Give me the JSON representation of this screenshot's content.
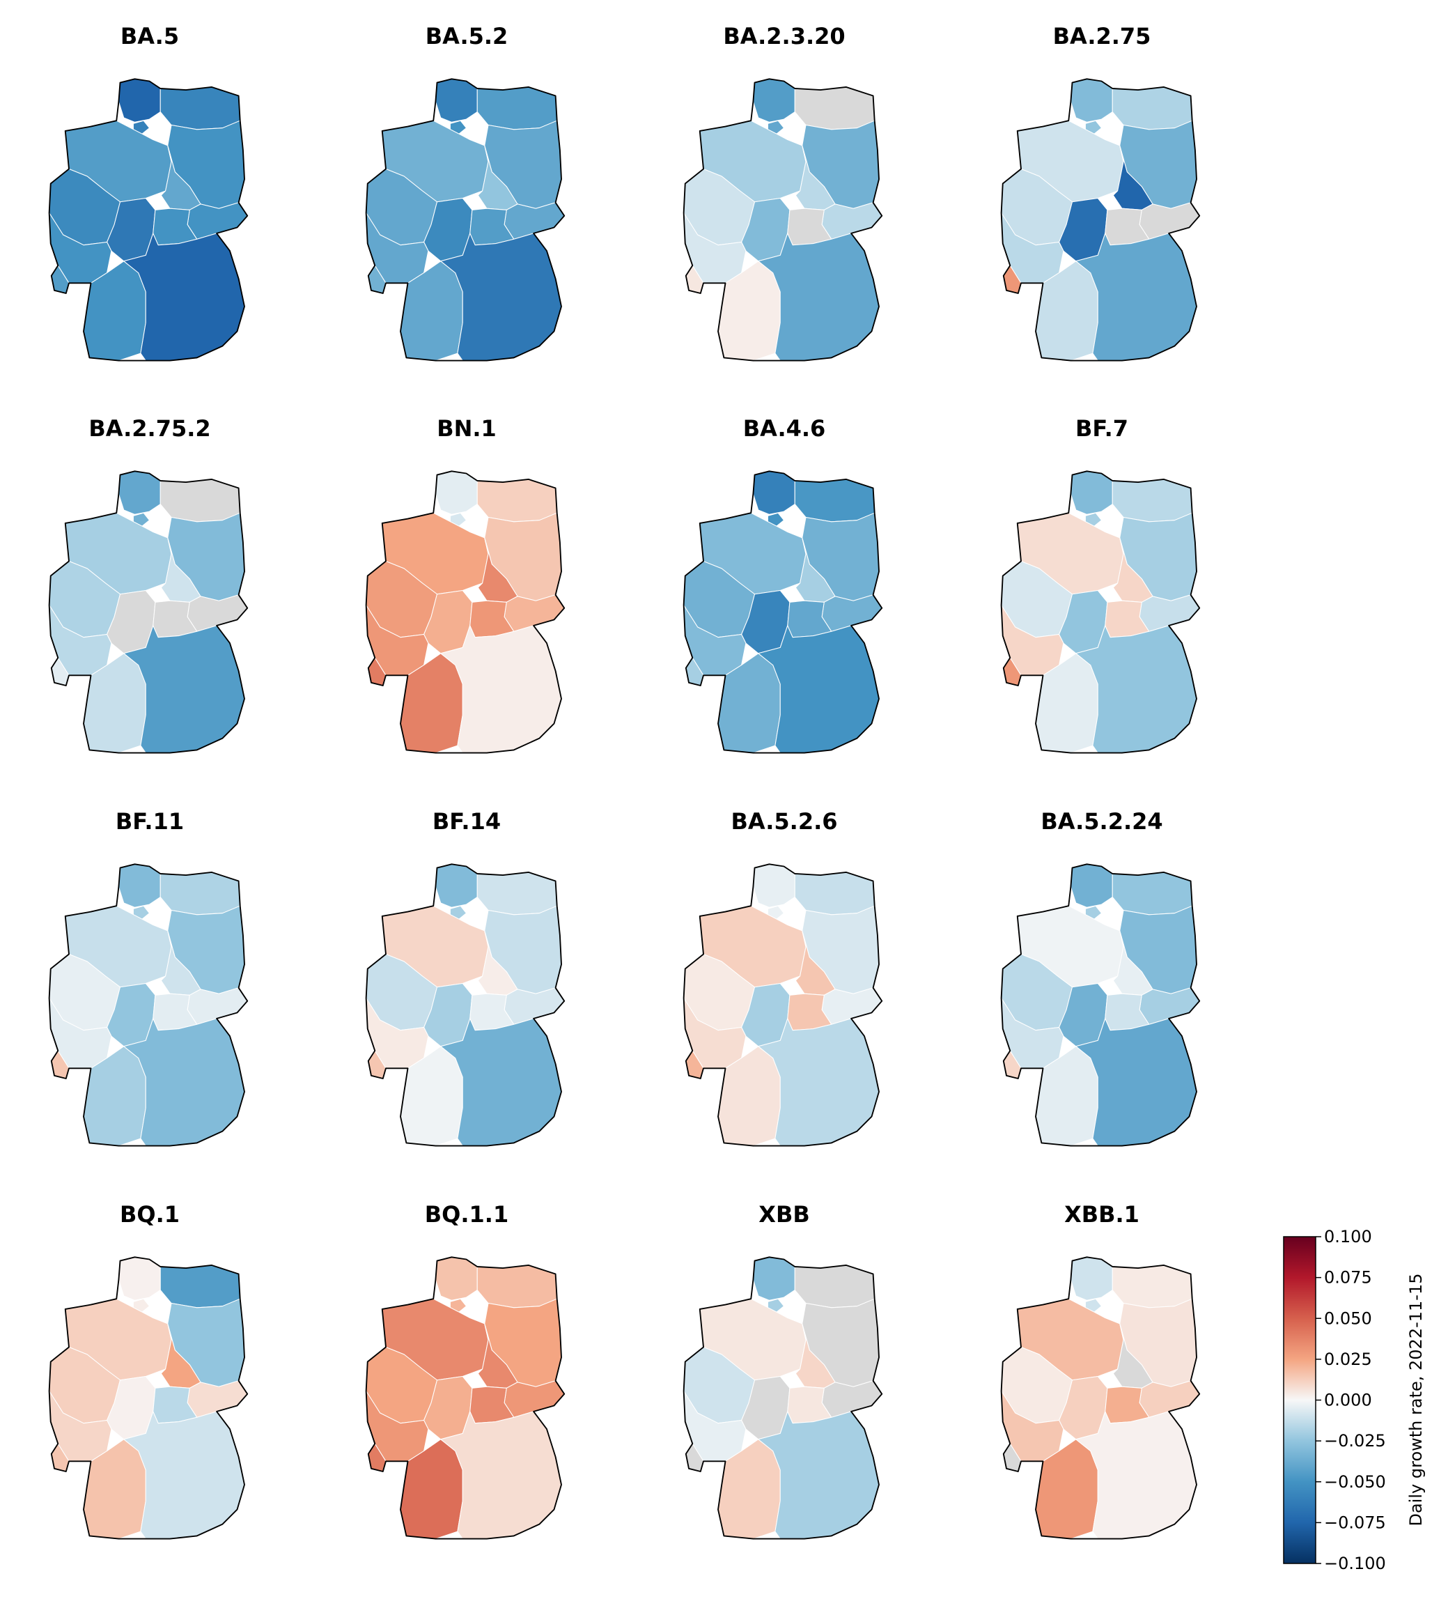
{
  "chart_data": {
    "type": "choropleth",
    "regions": [
      "SH",
      "HH",
      "MV",
      "HB",
      "NI",
      "BE",
      "BB",
      "ST",
      "NW",
      "SN",
      "HE",
      "TH",
      "RP",
      "SL",
      "BW",
      "BY"
    ],
    "missing_color": "#d9d9d9",
    "panels": [
      {
        "title": "BA.5",
        "values": {
          "SH": -0.075,
          "HH": -0.06,
          "MV": -0.058,
          "HB": -0.05,
          "NI": -0.045,
          "BE": -0.07,
          "BB": -0.05,
          "ST": -0.04,
          "NW": -0.055,
          "SN": -0.05,
          "HE": -0.065,
          "TH": -0.05,
          "RP": -0.05,
          "SL": -0.045,
          "BW": -0.05,
          "BY": -0.075
        }
      },
      {
        "title": "BA.5.2",
        "values": {
          "SH": -0.06,
          "HH": -0.05,
          "MV": -0.045,
          "HB": -0.045,
          "NI": -0.035,
          "BE": -0.065,
          "BB": -0.04,
          "ST": -0.025,
          "NW": -0.04,
          "SN": -0.04,
          "HE": -0.055,
          "TH": -0.045,
          "RP": -0.04,
          "SL": -0.035,
          "BW": -0.04,
          "BY": -0.065
        }
      },
      {
        "title": "BA.2.3.20",
        "values": {
          "SH": -0.045,
          "HH": -0.04,
          "MV": null,
          "HB": -0.03,
          "NI": -0.02,
          "BE": -0.05,
          "BB": -0.035,
          "ST": -0.015,
          "NW": -0.01,
          "SN": -0.015,
          "HE": -0.03,
          "TH": null,
          "RP": -0.008,
          "SL": 0.005,
          "BW": 0.003,
          "BY": -0.04
        }
      },
      {
        "title": "BA.2.75",
        "values": {
          "SH": -0.03,
          "HH": -0.025,
          "MV": -0.018,
          "HB": -0.07,
          "NI": -0.01,
          "BE": -0.03,
          "BB": -0.035,
          "ST": -0.075,
          "NW": -0.012,
          "SN": null,
          "HE": -0.07,
          "TH": null,
          "RP": -0.015,
          "SL": 0.03,
          "BW": -0.012,
          "BY": -0.04
        }
      },
      {
        "title": "BA.2.75.2",
        "values": {
          "SH": -0.04,
          "HH": -0.035,
          "MV": null,
          "HB": -0.025,
          "NI": -0.02,
          "BE": -0.03,
          "BB": -0.03,
          "ST": -0.01,
          "NW": -0.018,
          "SN": null,
          "HE": null,
          "TH": null,
          "RP": -0.015,
          "SL": -0.005,
          "BW": -0.012,
          "BY": -0.045
        }
      },
      {
        "title": "BN.1",
        "values": {
          "SH": -0.005,
          "HH": -0.008,
          "MV": 0.012,
          "HB": 0.01,
          "NI": 0.025,
          "BE": 0.015,
          "BB": 0.015,
          "ST": 0.035,
          "NW": 0.028,
          "SN": 0.02,
          "HE": 0.022,
          "TH": 0.03,
          "RP": 0.03,
          "SL": 0.04,
          "BW": 0.038,
          "BY": 0.003
        }
      },
      {
        "title": "BA.4.6",
        "values": {
          "SH": -0.06,
          "HH": -0.05,
          "MV": -0.048,
          "HB": -0.04,
          "NI": -0.03,
          "BE": -0.06,
          "BB": -0.035,
          "ST": -0.02,
          "NW": -0.035,
          "SN": -0.035,
          "HE": -0.058,
          "TH": -0.04,
          "RP": -0.03,
          "SL": -0.02,
          "BW": -0.035,
          "BY": -0.05
        }
      },
      {
        "title": "BF.7",
        "values": {
          "SH": -0.03,
          "HH": -0.02,
          "MV": -0.015,
          "HB": -0.02,
          "NI": 0.008,
          "BE": -0.03,
          "BB": -0.02,
          "ST": 0.01,
          "NW": -0.008,
          "SN": -0.012,
          "HE": -0.025,
          "TH": 0.01,
          "RP": 0.01,
          "SL": 0.03,
          "BW": -0.005,
          "BY": -0.025
        }
      },
      {
        "title": "BF.11",
        "values": {
          "SH": -0.03,
          "HH": -0.02,
          "MV": -0.018,
          "HB": -0.015,
          "NI": -0.012,
          "BE": -0.035,
          "BB": -0.025,
          "ST": -0.01,
          "NW": -0.004,
          "SN": -0.005,
          "HE": -0.025,
          "TH": -0.005,
          "RP": -0.005,
          "SL": 0.015,
          "BW": -0.02,
          "BY": -0.03
        }
      },
      {
        "title": "BF.14",
        "values": {
          "SH": -0.03,
          "HH": -0.02,
          "MV": -0.01,
          "HB": -0.03,
          "NI": 0.01,
          "BE": -0.02,
          "BB": -0.012,
          "ST": 0.003,
          "NW": -0.012,
          "SN": -0.008,
          "HE": -0.02,
          "TH": -0.004,
          "RP": 0.004,
          "SL": 0.015,
          "BW": -0.002,
          "BY": -0.035
        }
      },
      {
        "title": "BA.5.2.6",
        "values": {
          "SH": -0.004,
          "HH": -0.003,
          "MV": -0.012,
          "HB": 0.01,
          "NI": 0.012,
          "BE": -0.02,
          "BB": -0.008,
          "ST": 0.015,
          "NW": 0.004,
          "SN": -0.004,
          "HE": -0.02,
          "TH": 0.015,
          "RP": 0.008,
          "SL": 0.02,
          "BW": 0.006,
          "BY": -0.015
        }
      },
      {
        "title": "BA.5.2.24",
        "values": {
          "SH": -0.035,
          "HH": -0.02,
          "MV": -0.025,
          "HB": -0.03,
          "NI": -0.002,
          "BE": -0.04,
          "BB": -0.03,
          "ST": -0.004,
          "NW": -0.015,
          "SN": -0.02,
          "HE": -0.035,
          "TH": -0.01,
          "RP": -0.01,
          "SL": 0.01,
          "BW": -0.005,
          "BY": -0.04
        }
      },
      {
        "title": "BQ.1",
        "values": {
          "SH": 0.002,
          "HH": 0.003,
          "MV": -0.045,
          "HB": 0.008,
          "NI": 0.012,
          "BE": -0.02,
          "BB": -0.025,
          "ST": 0.025,
          "NW": 0.012,
          "SN": 0.008,
          "HE": 0.002,
          "TH": -0.015,
          "RP": 0.01,
          "SL": 0.015,
          "BW": 0.016,
          "BY": -0.01
        }
      },
      {
        "title": "BQ.1.1",
        "values": {
          "SH": 0.016,
          "HH": 0.02,
          "MV": 0.018,
          "HB": 0.03,
          "NI": 0.035,
          "BE": 0.02,
          "BB": 0.025,
          "ST": 0.035,
          "NW": 0.025,
          "SN": 0.03,
          "HE": 0.022,
          "TH": 0.035,
          "RP": 0.03,
          "SL": 0.04,
          "BW": 0.045,
          "BY": 0.008
        }
      },
      {
        "title": "XBB",
        "values": {
          "SH": -0.03,
          "HH": -0.02,
          "MV": null,
          "HB": -0.01,
          "NI": 0.005,
          "BE": null,
          "BB": null,
          "ST": 0.01,
          "NW": -0.01,
          "SN": null,
          "HE": null,
          "TH": 0.005,
          "RP": -0.004,
          "SL": null,
          "BW": 0.012,
          "BY": -0.02
        }
      },
      {
        "title": "XBB.1",
        "values": {
          "SH": -0.01,
          "HH": -0.01,
          "MV": 0.004,
          "HB": 0.02,
          "NI": 0.018,
          "BE": 0.008,
          "BB": 0.006,
          "ST": null,
          "NW": 0.004,
          "SN": 0.012,
          "HE": 0.012,
          "TH": 0.022,
          "RP": 0.015,
          "SL": null,
          "BW": 0.03,
          "BY": 0.002
        }
      }
    ],
    "colorbar": {
      "colormap": "RdBu_r",
      "vmin": -0.1,
      "vmax": 0.1,
      "ticks": [
        "0.100",
        "0.075",
        "0.050",
        "0.025",
        "0.000",
        "−0.025",
        "−0.050",
        "−0.075",
        "−0.100"
      ],
      "label": "Daily growth rate, 2022-11-15"
    }
  }
}
